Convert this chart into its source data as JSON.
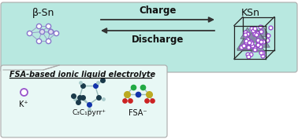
{
  "background_color": "#ffffff",
  "top_box_color": "#b8e8e0",
  "bottom_box_color": "#e8f8f5",
  "title_beta_sn": "β-Sn",
  "title_ksn": "KSn",
  "arrow_charge_label": "Charge",
  "arrow_discharge_label": "Discharge",
  "fsa_label": "FSA-based ionic liquid electrolyte",
  "k_label": "K⁺",
  "pyrr_label": "C₃C₁pyrr⁺",
  "fsa_anion_label": "FSA⁻",
  "fig_width": 3.78,
  "fig_height": 1.77,
  "dpi": 100,
  "arrow_color": "#333333",
  "font_size_titles": 9,
  "font_size_labels": 7,
  "font_size_fsa": 7.0,
  "sn_node_color": "#8877cc",
  "sn_edge_color": "#9999cc",
  "k_dot_color": "#9955cc",
  "ksn_k_color": "#9944cc",
  "ksn_sn_color": "#9999aa"
}
